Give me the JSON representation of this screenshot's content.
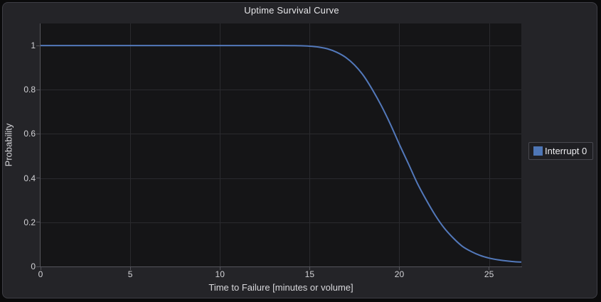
{
  "window": {
    "background": "#0a0a0b",
    "card_background": "#242428",
    "card_border": "#3e3e45",
    "plot_background": "#151517"
  },
  "chart": {
    "title": "Uptime Survival Curve",
    "x_axis": {
      "label": "Time to Failure [minutes or volume]",
      "tick_values": [
        0,
        5,
        10,
        15,
        20,
        25
      ],
      "tick_labels": [
        "0",
        "5",
        "10",
        "15",
        "20",
        "25"
      ]
    },
    "y_axis": {
      "label": "Probability",
      "tick_values": [
        0,
        0.2,
        0.4,
        0.6,
        0.8,
        1
      ],
      "tick_labels": [
        "0",
        "0.2",
        "0.4",
        "0.6",
        "0.8",
        "1"
      ]
    },
    "legend": {
      "position": "right",
      "items": [
        {
          "label": "Interrupt 0",
          "color": "#4e76b6"
        }
      ]
    },
    "colors": {
      "gridline": "#2a2a2e",
      "axis_line": "#55555b",
      "tick_text": "#d2d2d6",
      "title_text": "#e6e6e9",
      "series_blue": "#5379bb"
    }
  },
  "chart_data": {
    "type": "line",
    "title": "Uptime Survival Curve",
    "xlabel": "Time to Failure [minutes or volume]",
    "ylabel": "Probability",
    "xlim": [
      0,
      26.8
    ],
    "ylim": [
      0,
      1.1
    ],
    "grid": true,
    "legend_position": "right",
    "series": [
      {
        "name": "Interrupt 0",
        "color": "#5379bb",
        "swatch_color": "#4e76b6",
        "x": [
          0,
          2,
          4,
          6,
          8,
          10,
          12,
          13,
          14,
          14.5,
          15,
          15.5,
          16,
          16.5,
          17,
          17.5,
          18,
          18.5,
          19,
          19.5,
          20,
          20.5,
          21,
          21.5,
          22,
          22.5,
          23,
          23.5,
          24,
          24.5,
          25,
          25.5,
          26,
          26.5,
          26.8
        ],
        "y": [
          1,
          1,
          1,
          1,
          1,
          1,
          1,
          1,
          0.9995,
          0.999,
          0.997,
          0.993,
          0.985,
          0.97,
          0.947,
          0.912,
          0.864,
          0.8,
          0.727,
          0.644,
          0.553,
          0.466,
          0.377,
          0.301,
          0.232,
          0.174,
          0.129,
          0.092,
          0.068,
          0.05,
          0.038,
          0.03,
          0.025,
          0.021,
          0.02
        ]
      }
    ]
  }
}
